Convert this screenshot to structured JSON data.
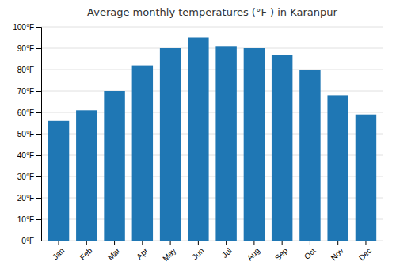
{
  "chart_data": {
    "type": "bar",
    "title": "Average monthly temperatures (°F ) in Karanpur",
    "categories": [
      "Jan",
      "Feb",
      "Mar",
      "Apr",
      "May",
      "Jun",
      "Jul",
      "Aug",
      "Sep",
      "Oct",
      "Nov",
      "Dec"
    ],
    "values": [
      56,
      61,
      70,
      82,
      90,
      95,
      91,
      90,
      87,
      80,
      68,
      59
    ],
    "ylim": [
      0,
      100
    ],
    "yticks": [
      {
        "value": 0,
        "label": "0°F"
      },
      {
        "value": 10,
        "label": "10°F"
      },
      {
        "value": 20,
        "label": "20°F"
      },
      {
        "value": 30,
        "label": "30°F"
      },
      {
        "value": 40,
        "label": "40°F"
      },
      {
        "value": 50,
        "label": "50°F"
      },
      {
        "value": 60,
        "label": "60°F"
      },
      {
        "value": 70,
        "label": "70°F"
      },
      {
        "value": 80,
        "label": "80°F"
      },
      {
        "value": 90,
        "label": "90°F"
      },
      {
        "value": 100,
        "label": "100°F"
      }
    ],
    "grid": true
  }
}
